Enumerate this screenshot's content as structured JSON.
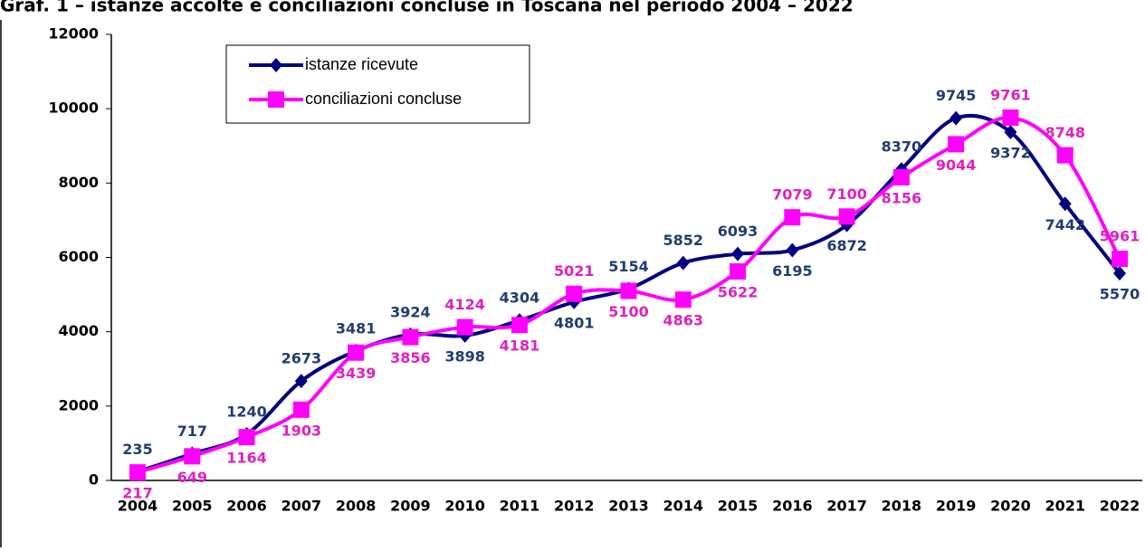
{
  "chart_data": {
    "type": "line",
    "title": "Graf. 1 – istanze accolte e conciliazioni concluse in Toscana nel periodo 2004 – 2022",
    "categories": [
      "2004",
      "2005",
      "2006",
      "2007",
      "2008",
      "2009",
      "2010",
      "2011",
      "2012",
      "2013",
      "2014",
      "2015",
      "2016",
      "2017",
      "2018",
      "2019",
      "2020",
      "2021",
      "2022"
    ],
    "series": [
      {
        "name": "istanze ricevute",
        "color": "#000080",
        "label_color": "#1f3d6e",
        "marker": "diamond",
        "values": [
          235,
          717,
          1240,
          2673,
          3481,
          3924,
          3898,
          4304,
          4801,
          5154,
          5852,
          6093,
          6195,
          6872,
          8370,
          9745,
          9372,
          7442,
          5570
        ]
      },
      {
        "name": "conciliazioni concluse",
        "color": "#ff00ff",
        "label_color": "#e020c0",
        "marker": "square",
        "values": [
          217,
          649,
          1164,
          1903,
          3439,
          3856,
          4124,
          4181,
          5021,
          5100,
          4863,
          5622,
          7079,
          7100,
          8156,
          9044,
          9761,
          8748,
          5961
        ]
      }
    ],
    "ylim": [
      0,
      12000
    ],
    "yticks": [
      0,
      2000,
      4000,
      6000,
      8000,
      10000,
      12000
    ]
  }
}
